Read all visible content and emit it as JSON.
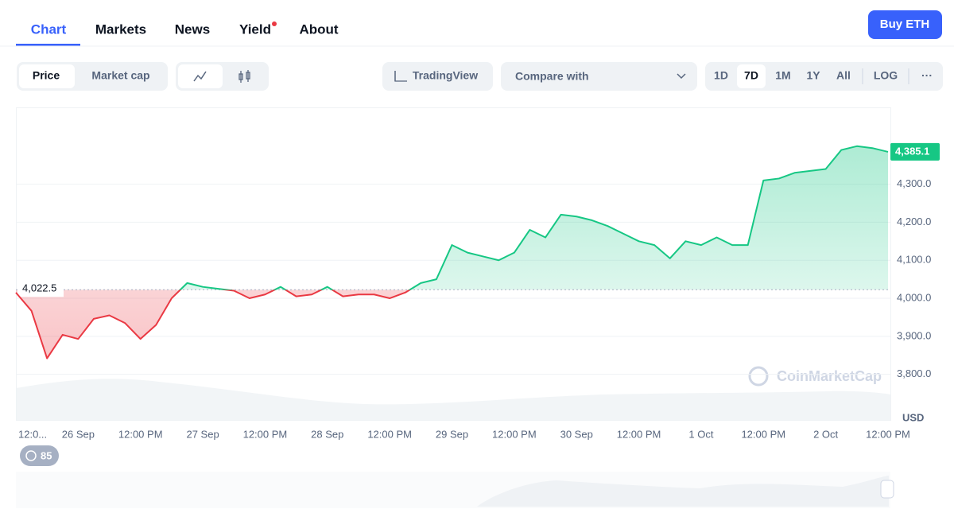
{
  "ui": {
    "tabs": [
      "Chart",
      "Markets",
      "News",
      "Yield",
      "About"
    ],
    "buy_button": "Buy ETH",
    "price_toggle": [
      "Price",
      "Market cap"
    ],
    "tradingview": "TradingView",
    "compare": "Compare with",
    "ranges": [
      "1D",
      "7D",
      "1M",
      "1Y",
      "All",
      "LOG"
    ],
    "more": "···",
    "badge": "85",
    "watermark": "CoinMarketCap"
  },
  "chart_data": {
    "type": "line",
    "unit_label": "USD",
    "categories": [
      "12:0...",
      null,
      null,
      null,
      "26 Sep",
      null,
      null,
      null,
      "12:00 PM",
      null,
      null,
      null,
      "27 Sep",
      null,
      null,
      null,
      "12:00 PM",
      null,
      null,
      null,
      "28 Sep",
      null,
      null,
      null,
      "12:00 PM",
      null,
      null,
      null,
      "29 Sep",
      null,
      null,
      null,
      "12:00 PM",
      null,
      null,
      null,
      "30 Sep",
      null,
      null,
      null,
      "12:00 PM",
      null,
      null,
      null,
      "1 Oct",
      null,
      null,
      null,
      "12:00 PM",
      null,
      null,
      null,
      "2 Oct",
      null,
      null,
      null,
      "12:00 PM"
    ],
    "values": [
      4015,
      3967,
      3842,
      3904,
      3893,
      3946,
      3955,
      3935,
      3893,
      3930,
      4000,
      4040,
      4030,
      4025,
      4020,
      4000,
      4010,
      4030,
      4005,
      4010,
      4030,
      4005,
      4010,
      4010,
      4000,
      4015,
      4040,
      4050,
      4140,
      4120,
      4110,
      4100,
      4120,
      4180,
      4160,
      4220,
      4215,
      4205,
      4190,
      4170,
      4150,
      4140,
      4105,
      4150,
      4140,
      4160,
      4140,
      4140,
      4310,
      4315,
      4330,
      4335,
      4340,
      4390,
      4400,
      4395,
      4385.1
    ],
    "value_labels": [
      null,
      null,
      null,
      null,
      null,
      null,
      null,
      null,
      null,
      null,
      null,
      null,
      null,
      null,
      null,
      null,
      null,
      null,
      null,
      null,
      null,
      null,
      null,
      null,
      null,
      null,
      null,
      null,
      null,
      null,
      null,
      null,
      null,
      null,
      null,
      null,
      null,
      null,
      null,
      null,
      null,
      null,
      null,
      null,
      null,
      null,
      null,
      null,
      null,
      null,
      null,
      null,
      null,
      null,
      null,
      null,
      "4,385.1"
    ],
    "reference": {
      "value": 4022.5,
      "label": "4,022.5"
    },
    "up_color": "#16c784",
    "down_color": "#ea3943",
    "ylim": [
      3680,
      4500
    ],
    "yticks": [
      {
        "value": 3800,
        "label": "3,800.0"
      },
      {
        "value": 3900,
        "label": "3,900.0"
      },
      {
        "value": 4000,
        "label": "4,000.0"
      },
      {
        "value": 4100,
        "label": "4,100.0"
      },
      {
        "value": 4200,
        "label": "4,200.0"
      },
      {
        "value": 4300,
        "label": "4,300.0"
      }
    ],
    "grid": true
  }
}
